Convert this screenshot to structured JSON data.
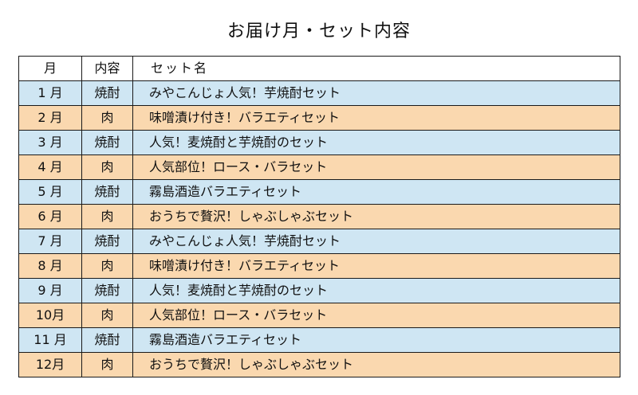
{
  "title": "お届け月・セット内容",
  "table": {
    "headers": {
      "month": "月",
      "kind": "内容",
      "set": "セット名"
    },
    "rows": [
      {
        "month": "1 月",
        "kind": "焼酎",
        "set": "みやこんじょ人気！芋焼酎セット"
      },
      {
        "month": "2 月",
        "kind": "肉",
        "set": "味噌漬け付き！バラエティセット"
      },
      {
        "month": "3 月",
        "kind": "焼酎",
        "set": "人気！麦焼酎と芋焼酎のセット"
      },
      {
        "month": "4 月",
        "kind": "肉",
        "set": "人気部位！ロース・バラセット"
      },
      {
        "month": "5 月",
        "kind": "焼酎",
        "set": "霧島酒造バラエティセット"
      },
      {
        "month": "6 月",
        "kind": "肉",
        "set": "おうちで贅沢！しゃぶしゃぶセット"
      },
      {
        "month": "7 月",
        "kind": "焼酎",
        "set": "みやこんじょ人気！芋焼酎セット"
      },
      {
        "month": "8 月",
        "kind": "肉",
        "set": "味噌漬け付き！バラエティセット"
      },
      {
        "month": "9 月",
        "kind": "焼酎",
        "set": "人気！麦焼酎と芋焼酎のセット"
      },
      {
        "month": "10月",
        "kind": "肉",
        "set": "人気部位！ロース・バラセット"
      },
      {
        "month": "11 月",
        "kind": "焼酎",
        "set": "霧島酒造バラエティセット"
      },
      {
        "month": "12月",
        "kind": "肉",
        "set": "おうちで贅沢！しゃぶしゃぶセット"
      }
    ]
  },
  "colors": {
    "shochu_row": "#cfe6f3",
    "meat_row": "#fad8af",
    "border": "#1a1a1a"
  }
}
